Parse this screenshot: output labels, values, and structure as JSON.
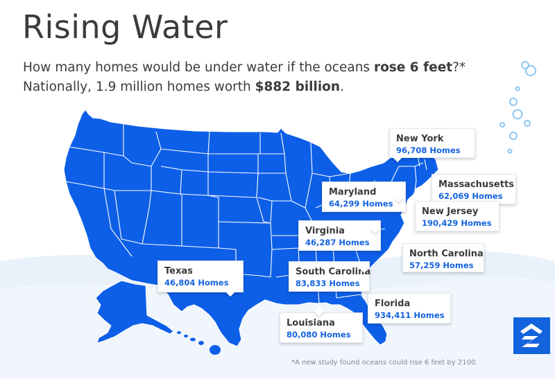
{
  "header": {
    "title": "Rising Water",
    "subtitle_line1_pre": "How many homes would be under water if the oceans ",
    "subtitle_line1_bold": "rose 6 feet",
    "subtitle_line1_post": "?*",
    "subtitle_line2_pre": "Nationally, 1.9 million homes worth ",
    "subtitle_line2_bold": "$882 billion",
    "subtitle_line2_post": "."
  },
  "callouts": [
    {
      "state": "New York",
      "homes": "96,708 Homes"
    },
    {
      "state": "Massachusetts",
      "homes": "62,069 Homes"
    },
    {
      "state": "Maryland",
      "homes": "64,299 Homes"
    },
    {
      "state": "New Jersey",
      "homes": "190,429 Homes"
    },
    {
      "state": "Virginia",
      "homes": "46,287 Homes"
    },
    {
      "state": "North Carolina",
      "homes": "57,259 Homes"
    },
    {
      "state": "Texas",
      "homes": "46,804 Homes"
    },
    {
      "state": "South Carolina",
      "homes": "83,833 Homes"
    },
    {
      "state": "Florida",
      "homes": "934,411 Homes"
    },
    {
      "state": "Louisiana",
      "homes": "80,080 Homes"
    }
  ],
  "footnote": "*A new study found oceans could rise 6 feet by 2100.",
  "colors": {
    "map_fill": "#0d5fe8",
    "state_borders": "#ffffff",
    "accent_text": "#1363de",
    "water": "#e9f1fb",
    "bubbles": "#8cc6f2",
    "logo_bg": "#1363de"
  },
  "icons": {
    "logo": "zillow-z-logo",
    "bubbles": "water-bubbles"
  }
}
